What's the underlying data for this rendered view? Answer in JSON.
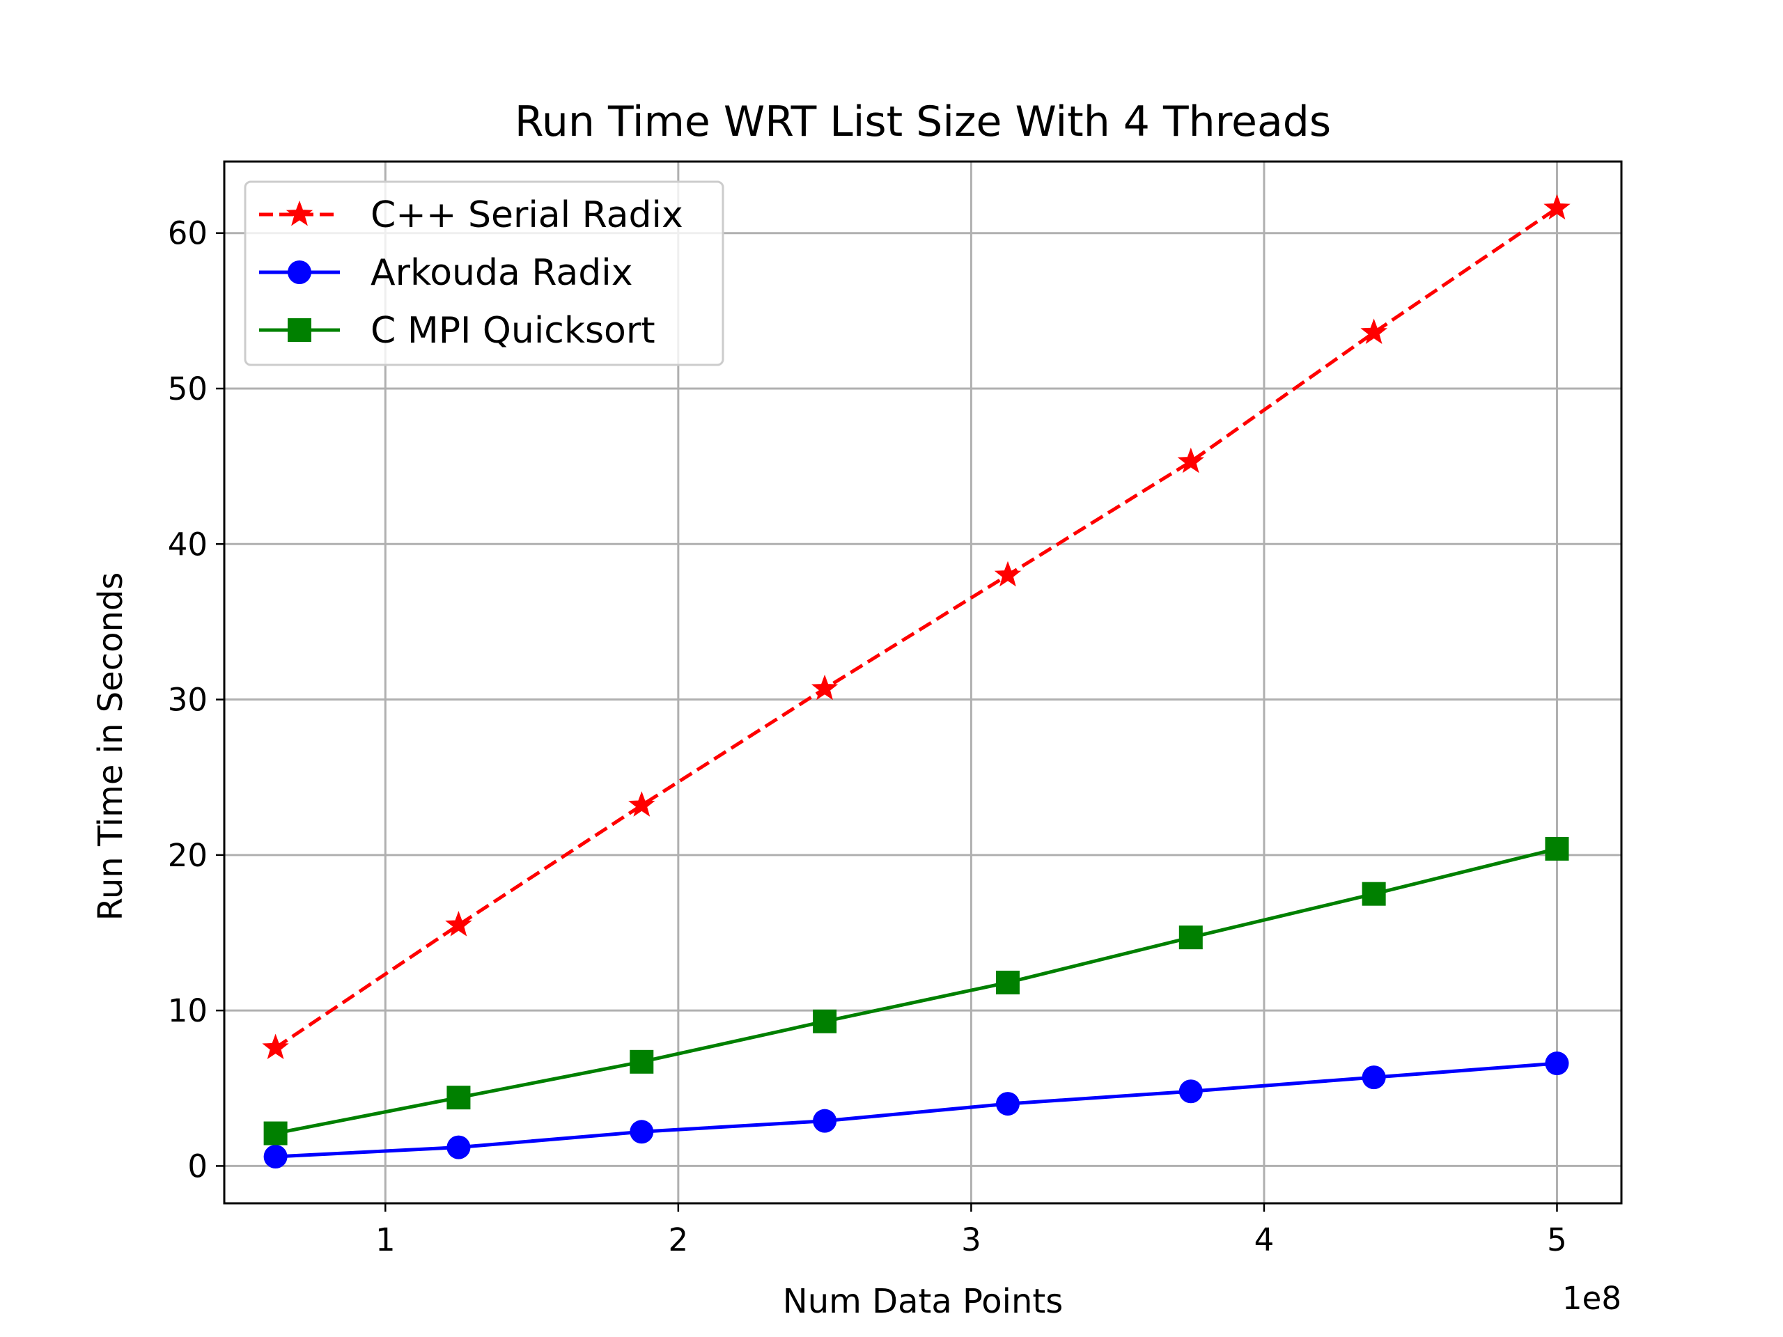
{
  "chart_data": {
    "type": "line",
    "title": "Run Time WRT List Size With 4 Threads",
    "xlabel": "Num Data Points",
    "ylabel": "Run Time in Seconds",
    "x_offset_label": "1e8",
    "xlim": [
      0.45,
      5.22
    ],
    "ylim": [
      -2.4,
      64.6
    ],
    "x_ticks": [
      1,
      2,
      3,
      4,
      5
    ],
    "x_tick_labels": [
      "1",
      "2",
      "3",
      "4",
      "5"
    ],
    "y_ticks": [
      0,
      10,
      20,
      30,
      40,
      50,
      60
    ],
    "y_tick_labels": [
      "0",
      "10",
      "20",
      "30",
      "40",
      "50",
      "60"
    ],
    "grid": true,
    "legend_position": "upper-left",
    "x": [
      0.625,
      1.25,
      1.875,
      2.5,
      3.125,
      3.75,
      4.375,
      5.0
    ],
    "series": [
      {
        "name": "C++ Serial Radix",
        "color": "#ff0000",
        "linestyle": "dashed",
        "marker": "star",
        "values": [
          7.6,
          15.5,
          23.2,
          30.7,
          38.0,
          45.3,
          53.6,
          61.6
        ]
      },
      {
        "name": "Arkouda Radix",
        "color": "#0000ff",
        "linestyle": "solid",
        "marker": "circle",
        "values": [
          0.6,
          1.2,
          2.2,
          2.9,
          4.0,
          4.8,
          5.7,
          6.6
        ]
      },
      {
        "name": "C MPI Quicksort",
        "color": "#008000",
        "linestyle": "solid",
        "marker": "square",
        "values": [
          2.1,
          4.4,
          6.7,
          9.3,
          11.8,
          14.7,
          17.5,
          20.4
        ]
      }
    ]
  }
}
